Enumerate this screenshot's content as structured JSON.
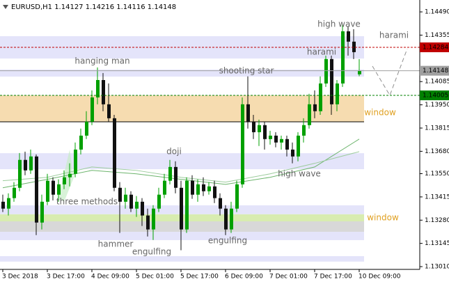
{
  "chart_data": {
    "type": "candlestick",
    "title": "EURUSD,H1  1.14127 1.14216 1.14116 1.14148",
    "categories": [
      "3 Dec 2018",
      null,
      null,
      null,
      null,
      null,
      null,
      null,
      "3 Dec 17:00",
      null,
      null,
      null,
      null,
      null,
      null,
      null,
      "4 Dec 09:00",
      null,
      null,
      null,
      null,
      null,
      null,
      null,
      "5 Dec 01:00",
      null,
      null,
      null,
      null,
      null,
      null,
      null,
      "5 Dec 17:00",
      null,
      null,
      null,
      null,
      null,
      null,
      null,
      "6 Dec 09:00",
      null,
      null,
      null,
      null,
      null,
      null,
      null,
      "7 Dec 01:00",
      null,
      null,
      null,
      null,
      null,
      null,
      null,
      "7 Dec 17:00",
      null,
      null,
      null,
      null,
      null,
      null,
      null,
      "10 Dec 09:00"
    ],
    "ohlc": [
      [
        1.13387,
        1.13428,
        1.13327,
        1.13347
      ],
      [
        1.13347,
        1.13436,
        1.13307,
        1.13408
      ],
      [
        1.13408,
        1.13501,
        1.13387,
        1.13468
      ],
      [
        1.13468,
        1.1367,
        1.13448,
        1.1363
      ],
      [
        1.1363,
        1.13678,
        1.13541,
        1.13569
      ],
      [
        1.13569,
        1.1369,
        1.13549,
        1.1365
      ],
      [
        1.1365,
        1.13662,
        1.13193,
        1.13266
      ],
      [
        1.13266,
        1.13428,
        1.13226,
        1.13387
      ],
      [
        1.13387,
        1.13549,
        1.13367,
        1.13509
      ],
      [
        1.13509,
        1.13529,
        1.13395,
        1.13428
      ],
      [
        1.13428,
        1.13517,
        1.13387,
        1.13488
      ],
      [
        1.13488,
        1.13569,
        1.1346,
        1.13529
      ],
      [
        1.13529,
        1.1361,
        1.13476,
        1.13549
      ],
      [
        1.13549,
        1.13731,
        1.13529,
        1.1369
      ],
      [
        1.1369,
        1.13812,
        1.13662,
        1.13771
      ],
      [
        1.13771,
        1.13913,
        1.13751,
        1.13852
      ],
      [
        1.13852,
        1.14034,
        1.13832,
        1.13993
      ],
      [
        1.13993,
        1.14167,
        1.13953,
        1.14094
      ],
      [
        1.14094,
        1.14135,
        1.13913,
        1.13953
      ],
      [
        1.13953,
        1.14074,
        1.13852,
        1.13872
      ],
      [
        1.13872,
        1.13892,
        1.13448,
        1.13468
      ],
      [
        1.13468,
        1.13501,
        1.13206,
        1.13387
      ],
      [
        1.13387,
        1.13468,
        1.13347,
        1.13428
      ],
      [
        1.13428,
        1.13448,
        1.13327,
        1.13347
      ],
      [
        1.13347,
        1.1342,
        1.13299,
        1.13387
      ],
      [
        1.13387,
        1.13408,
        1.13246,
        1.13307
      ],
      [
        1.13307,
        1.13347,
        1.13185,
        1.13226
      ],
      [
        1.13226,
        1.13367,
        1.13165,
        1.13347
      ],
      [
        1.13347,
        1.13468,
        1.13327,
        1.13428
      ],
      [
        1.13428,
        1.13549,
        1.13408,
        1.13509
      ],
      [
        1.13509,
        1.1363,
        1.13488,
        1.13589
      ],
      [
        1.13589,
        1.13622,
        1.13436,
        1.13468
      ],
      [
        1.13468,
        1.13509,
        1.13105,
        1.13226
      ],
      [
        1.13226,
        1.13529,
        1.13206,
        1.13509
      ],
      [
        1.13509,
        1.13541,
        1.13404,
        1.13428
      ],
      [
        1.13428,
        1.13517,
        1.13387,
        1.13488
      ],
      [
        1.13488,
        1.13529,
        1.1342,
        1.13448
      ],
      [
        1.13448,
        1.13501,
        1.13428,
        1.13476
      ],
      [
        1.13476,
        1.13509,
        1.13379,
        1.13408
      ],
      [
        1.13408,
        1.13436,
        1.13307,
        1.13347
      ],
      [
        1.13347,
        1.13367,
        1.13193,
        1.13226
      ],
      [
        1.13226,
        1.13387,
        1.13206,
        1.13347
      ],
      [
        1.13347,
        1.13509,
        1.13327,
        1.13488
      ],
      [
        1.13488,
        1.13993,
        1.13468,
        1.13953
      ],
      [
        1.13953,
        1.14115,
        1.13812,
        1.13852
      ],
      [
        1.13852,
        1.13892,
        1.13751,
        1.13791
      ],
      [
        1.13791,
        1.13864,
        1.13711,
        1.13832
      ],
      [
        1.13832,
        1.13852,
        1.1369,
        1.13751
      ],
      [
        1.13751,
        1.13799,
        1.13719,
        1.13771
      ],
      [
        1.13771,
        1.13791,
        1.13703,
        1.13731
      ],
      [
        1.13731,
        1.13771,
        1.1369,
        1.13751
      ],
      [
        1.13751,
        1.13771,
        1.1365,
        1.1369
      ],
      [
        1.1369,
        1.13731,
        1.1361,
        1.1365
      ],
      [
        1.1365,
        1.13791,
        1.13622,
        1.13771
      ],
      [
        1.13771,
        1.13872,
        1.13731,
        1.13832
      ],
      [
        1.13832,
        1.14014,
        1.13812,
        1.13953
      ],
      [
        1.13953,
        1.14034,
        1.13872,
        1.13913
      ],
      [
        1.13913,
        1.14115,
        1.13892,
        1.14074
      ],
      [
        1.14074,
        1.14236,
        1.14054,
        1.14216
      ],
      [
        1.14216,
        1.14236,
        1.13892,
        1.13953
      ],
      [
        1.13953,
        1.14094,
        1.13913,
        1.14074
      ],
      [
        1.14074,
        1.14418,
        1.14054,
        1.14377
      ],
      [
        1.14377,
        1.14405,
        1.14236,
        1.14317
      ],
      [
        1.14317,
        1.14389,
        1.14216,
        1.14256
      ],
      [
        1.14127,
        1.14216,
        1.14116,
        1.14148
      ]
    ],
    "up_color": "#00a000",
    "down_color": "#111111",
    "ylim": [
      1.12994,
      1.14559
    ],
    "yticks": [
      {
        "value": 1.1449,
        "label": "1.14490"
      },
      1.14355,
      1.14085,
      {
        "value": 1.1395,
        "label": "1.13950"
      },
      1.13815,
      {
        "value": 1.1368,
        "label": "1.13680"
      },
      {
        "value": 1.1355,
        "label": "1.13550"
      },
      1.13415,
      {
        "value": 1.1328,
        "label": "1.13280"
      },
      1.13145,
      {
        "value": 1.1301,
        "label": "1.13010"
      }
    ],
    "levels": [
      {
        "price": 1.14284,
        "color": "#c00000",
        "dashed": true
      },
      {
        "price": 1.14148,
        "color": "#a0a0a0",
        "dashed": false
      },
      {
        "price": 1.14005,
        "color": "#008000",
        "dashed": true
      }
    ],
    "zones": [
      {
        "from": 1.14219,
        "to": 1.14349,
        "color": "#e4e4fa"
      },
      {
        "from": 1.14114,
        "to": 1.14155,
        "color": "#e4e4fa"
      },
      {
        "from": 1.13851,
        "to": 1.14005,
        "color": "#f6dcb0"
      },
      {
        "from": 1.13576,
        "to": 1.13669,
        "color": "#e4e4fa"
      },
      {
        "from": 1.13314,
        "to": 1.13366,
        "color": "#e4e4fa"
      },
      {
        "from": 1.13273,
        "to": 1.13314,
        "color": "#d8ecb0"
      },
      {
        "from": 1.13212,
        "to": 1.13273,
        "color": "#d8d8d8"
      },
      {
        "from": 1.13164,
        "to": 1.13212,
        "color": "#e4e4fa"
      },
      {
        "from": 1.13039,
        "to": 1.13071,
        "color": "#e4e4fa"
      }
    ],
    "ma": [
      {
        "color": "#6cb46c",
        "x": [
          0,
          8,
          16,
          24,
          32,
          40,
          48,
          56,
          64
        ],
        "values": [
          1.13468,
          1.13517,
          1.13569,
          1.13549,
          1.13517,
          1.13488,
          1.13529,
          1.13589,
          1.13751
        ]
      },
      {
        "color": "#9ccc9c",
        "x": [
          0,
          8,
          16,
          24,
          32,
          40,
          48,
          56,
          64
        ],
        "values": [
          1.13509,
          1.13529,
          1.13589,
          1.13569,
          1.13529,
          1.13501,
          1.13549,
          1.1361,
          1.13678
        ]
      }
    ],
    "annotations": [
      "high wave",
      "harami",
      "harami",
      "hanging man",
      "shooting star",
      "window",
      "doji",
      "high wave",
      "three methods",
      "window",
      "hammer",
      "engulfing",
      "engulfing"
    ]
  }
}
